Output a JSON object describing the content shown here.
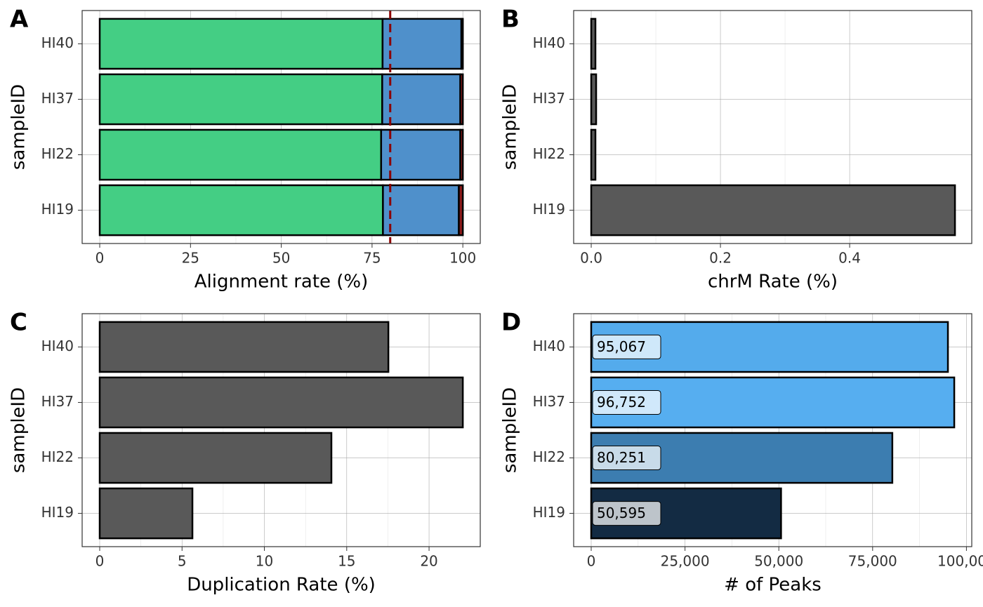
{
  "chart_data": [
    {
      "type": "bar",
      "orientation": "horizontal",
      "stacked": true,
      "tag": "A",
      "xlabel": "Alignment rate (%)",
      "ylabel": "sampleID",
      "categories": [
        "HI19",
        "HI22",
        "HI37",
        "HI40"
      ],
      "series": [
        {
          "color": "#44ce84",
          "values": [
            78.0,
            77.5,
            77.8,
            77.9
          ]
        },
        {
          "color": "#4f90cb",
          "values": [
            20.9,
            21.8,
            21.5,
            21.7
          ]
        },
        {
          "color": "#8b1a1a",
          "values": [
            1.1,
            0.7,
            0.7,
            0.4
          ]
        }
      ],
      "reference_line": {
        "value": 80,
        "color": "#8b0000",
        "style": "dashed"
      },
      "xlim": [
        -4.84,
        104.8
      ],
      "xticks": [
        0,
        25,
        50,
        75,
        100
      ],
      "grid": true
    },
    {
      "type": "bar",
      "orientation": "horizontal",
      "tag": "B",
      "xlabel": "chrM Rate (%)",
      "ylabel": "sampleID",
      "categories": [
        "HI19",
        "HI22",
        "HI37",
        "HI40"
      ],
      "values": [
        0.563,
        0.0065,
        0.0076,
        0.0065
      ],
      "color": "#595959",
      "xlim": [
        -0.0272,
        0.589
      ],
      "xticks": [
        {
          "value": 0,
          "label": "0.0"
        },
        0.2,
        0.4
      ],
      "grid": true
    },
    {
      "type": "bar",
      "orientation": "horizontal",
      "tag": "C",
      "xlabel": "Duplication Rate (%)",
      "ylabel": "sampleID",
      "categories": [
        "HI19",
        "HI22",
        "HI37",
        "HI40"
      ],
      "values": [
        5.63,
        14.07,
        22.05,
        17.53
      ],
      "color": "#595959",
      "xlim": [
        -1.066,
        23.11
      ],
      "xticks": [
        0,
        5,
        10,
        15,
        20
      ],
      "grid": true
    },
    {
      "type": "bar",
      "orientation": "horizontal",
      "tag": "D",
      "xlabel": "# of Peaks",
      "ylabel": "sampleID",
      "categories": [
        "HI19",
        "HI22",
        "HI37",
        "HI40"
      ],
      "values": [
        50595,
        80251,
        96752,
        95067
      ],
      "value_labels": [
        "50,595",
        "80,251",
        "96,752",
        "95,067"
      ],
      "colors": [
        "#132b43",
        "#3c7db0",
        "#56aef0",
        "#54abec"
      ],
      "xlim": [
        -4678,
        101421
      ],
      "xticks": [
        0,
        {
          "value": 25000,
          "label": "25,000"
        },
        {
          "value": 50000,
          "label": "50,000"
        },
        {
          "value": 75000,
          "label": "75,000"
        },
        {
          "value": 100000,
          "label": "100,000"
        }
      ],
      "grid": true
    }
  ]
}
